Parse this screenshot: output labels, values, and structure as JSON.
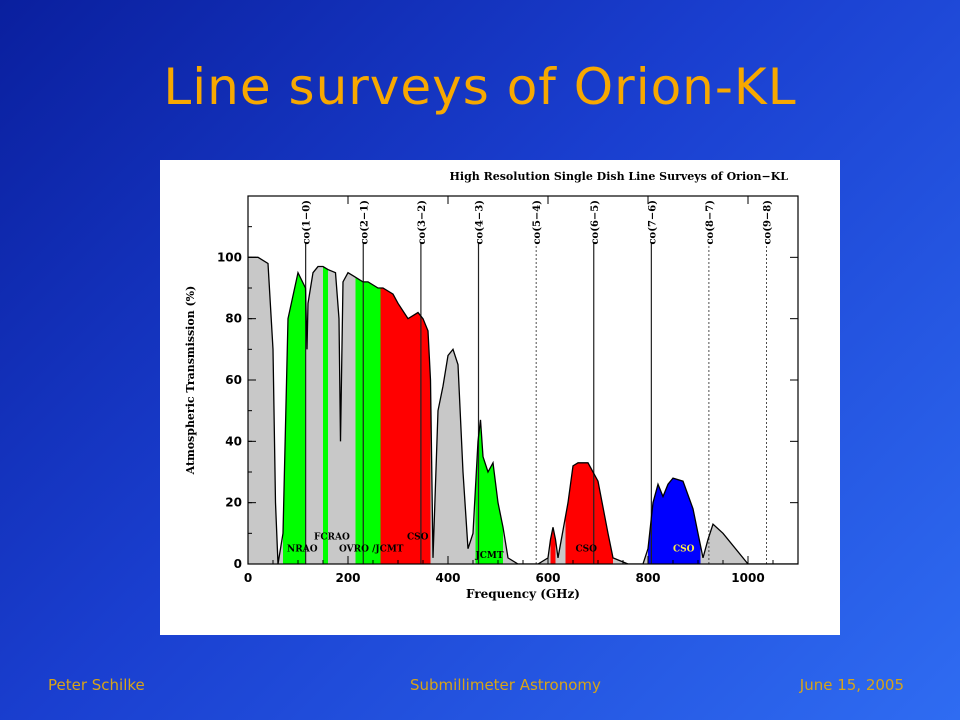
{
  "slide": {
    "title": "Line surveys of Orion-KL",
    "footer_left": "Peter Schilke",
    "footer_center": "Submillimeter Astronomy",
    "footer_right": "June 15, 2005"
  },
  "colors": {
    "title": "#f7a800",
    "footer": "#d8a417",
    "bg_start": "#0a1f9e",
    "bg_end": "#2f6cf2",
    "nraog": "#00ff00",
    "cso_red": "#ff0000",
    "cso_blue": "#0000ff",
    "atmo_gray": "#c8c8c8"
  },
  "chart_data": {
    "type": "area",
    "title": "High Resolution Single Dish Line Surveys of Orion−KL",
    "xlabel": "Frequency (GHz)",
    "ylabel": "Atmospheric Transmission (%)",
    "xlim": [
      0,
      1100
    ],
    "ylim": [
      0,
      120
    ],
    "xticks": [
      "0",
      "200",
      "400",
      "600",
      "800",
      "1000"
    ],
    "yticks": [
      "0",
      "20",
      "40",
      "60",
      "80",
      "100"
    ],
    "transmission_curve": {
      "x": [
        0,
        20,
        40,
        50,
        55,
        60,
        70,
        80,
        100,
        115,
        118,
        120,
        130,
        140,
        150,
        160,
        175,
        182,
        185,
        190,
        200,
        210,
        220,
        230,
        240,
        260,
        270,
        290,
        300,
        320,
        340,
        350,
        360,
        365,
        370,
        380,
        390,
        400,
        410,
        420,
        430,
        440,
        450,
        460,
        465,
        470,
        480,
        490,
        500,
        510,
        520,
        540,
        560,
        580,
        600,
        605,
        610,
        615,
        620,
        640,
        650,
        660,
        680,
        700,
        720,
        730,
        760,
        780,
        790,
        800,
        810,
        820,
        830,
        840,
        850,
        870,
        890,
        900,
        910,
        920,
        930,
        950,
        1000,
        1030,
        1040,
        1060,
        1100
      ],
      "y": [
        100,
        100,
        98,
        70,
        20,
        0,
        10,
        80,
        95,
        90,
        70,
        85,
        95,
        97,
        97,
        96,
        95,
        80,
        40,
        92,
        95,
        94,
        93,
        92,
        92,
        90,
        90,
        88,
        85,
        80,
        82,
        80,
        76,
        60,
        2,
        50,
        58,
        68,
        70,
        65,
        30,
        5,
        10,
        40,
        47,
        35,
        30,
        33,
        20,
        12,
        2,
        0,
        0,
        0,
        2,
        8,
        12,
        8,
        2,
        20,
        32,
        33,
        33,
        27,
        10,
        2,
        0,
        0,
        0,
        5,
        20,
        26,
        22,
        26,
        28,
        27,
        18,
        10,
        2,
        8,
        13,
        10,
        0,
        0,
        0,
        0,
        0
      ]
    },
    "survey_bands": [
      {
        "label": "NRAO",
        "x": [
          70,
          115
        ],
        "color": "green"
      },
      {
        "label": "FCRAO",
        "x": [
          150,
          160
        ],
        "color": "green"
      },
      {
        "label": "OVRO",
        "x": [
          215,
          265
        ],
        "color": "green"
      },
      {
        "label": "JCMT",
        "x": [
          265,
          360
        ],
        "color": "red"
      },
      {
        "label": "CSO",
        "x": [
          340,
          365
        ],
        "color": "red"
      },
      {
        "label": "JCMT",
        "x": [
          455,
          510
        ],
        "color": "green"
      },
      {
        "label": "CSO",
        "x": [
          605,
          615
        ],
        "color": "red"
      },
      {
        "label": "CSO",
        "x": [
          635,
          730
        ],
        "color": "red"
      },
      {
        "label": "CSO",
        "x": [
          800,
          905
        ],
        "color": "blue"
      }
    ],
    "band_labels": [
      {
        "text": "NRAO",
        "x": 78,
        "y": 4
      },
      {
        "text": "FCRAO",
        "x": 132,
        "y": 8
      },
      {
        "text": "OVRO /JCMT",
        "x": 182,
        "y": 4
      },
      {
        "text": "CSO",
        "x": 318,
        "y": 8
      },
      {
        "text": "JCMT",
        "x": 455,
        "y": 2
      },
      {
        "text": "CSO",
        "x": 655,
        "y": 4
      },
      {
        "text": "CSO",
        "x": 850,
        "y": 4
      }
    ],
    "co_lines": [
      {
        "label": "co(1−0)",
        "freq": 115.3,
        "solid": true
      },
      {
        "label": "co(2−1)",
        "freq": 230.5,
        "solid": true
      },
      {
        "label": "co(3−2)",
        "freq": 345.8,
        "solid": true
      },
      {
        "label": "co(4−3)",
        "freq": 461.0,
        "solid": true
      },
      {
        "label": "co(5−4)",
        "freq": 576.3,
        "solid": false
      },
      {
        "label": "co(6−5)",
        "freq": 691.5,
        "solid": true
      },
      {
        "label": "co(7−6)",
        "freq": 806.7,
        "solid": true
      },
      {
        "label": "co(8−7)",
        "freq": 921.8,
        "solid": false
      },
      {
        "label": "co(9−8)",
        "freq": 1037.0,
        "solid": false
      }
    ]
  }
}
